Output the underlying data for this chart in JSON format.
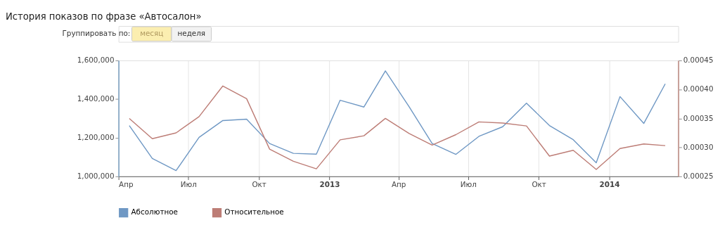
{
  "chart_data": {
    "type": "line",
    "title": "История показов по фразе «Автосалон»",
    "annotations": [
      "Группировать по:",
      "месяц",
      "неделя"
    ],
    "x": [
      "2012-04-15",
      "2012-05-15",
      "2012-06-15",
      "2012-07-15",
      "2012-08-15",
      "2012-09-15",
      "2012-10-15",
      "2012-11-15",
      "2012-12-15",
      "2013-01-15",
      "2013-02-15",
      "2013-03-15",
      "2013-04-15",
      "2013-05-15",
      "2013-06-15",
      "2013-07-15",
      "2013-08-15",
      "2013-09-15",
      "2013-10-15",
      "2013-11-15",
      "2013-12-15",
      "2014-01-15",
      "2014-02-15",
      "2014-03-15"
    ],
    "series": [
      {
        "name": "Абсолютное",
        "color": "#6f98c4",
        "values": [
          1263000,
          1093000,
          1030000,
          1202000,
          1289000,
          1296000,
          1170000,
          1119000,
          1115000,
          1394000,
          1359000,
          1546000,
          1360000,
          1170000,
          1114000,
          1207000,
          1257000,
          1379000,
          1263000,
          1190000,
          1070000,
          1413000,
          1274000,
          1479000
        ]
      },
      {
        "name": "Относительное",
        "color": "#bd7d76",
        "axis": "y2",
        "values": [
          0.00035,
          0.000315,
          0.000325,
          0.000353,
          0.000406,
          0.000384,
          0.000297,
          0.000276,
          0.000263,
          0.000313,
          0.00032,
          0.00035,
          0.000324,
          0.000304,
          0.000322,
          0.000344,
          0.000342,
          0.000337,
          0.000285,
          0.000295,
          0.000262,
          0.000298,
          0.000306,
          0.000303
        ]
      }
    ],
    "xlim": [
      "2012-04-01",
      "2014-04-01"
    ],
    "xticks": [
      {
        "value": "2012-04-01",
        "label": "Апр"
      },
      {
        "value": "2012-07-01",
        "label": "Июл"
      },
      {
        "value": "2012-10-01",
        "label": "Окт"
      },
      {
        "value": "2013-01-01",
        "label": "2013"
      },
      {
        "value": "2013-04-01",
        "label": "Апр"
      },
      {
        "value": "2013-07-01",
        "label": "Июл"
      },
      {
        "value": "2013-10-01",
        "label": "Окт"
      },
      {
        "value": "2014-01-01",
        "label": "2014"
      }
    ],
    "ylim": [
      1000000,
      1600000
    ],
    "yticks": [
      {
        "value": 1000000,
        "label": "1,000,000"
      },
      {
        "value": 1200000,
        "label": "1,200,000"
      },
      {
        "value": 1400000,
        "label": "1,400,000"
      },
      {
        "value": 1600000,
        "label": "1,600,000"
      }
    ],
    "y2lim": [
      0.00025,
      0.00045
    ],
    "y2ticks": [
      0.00025,
      {
        "value": 0.0003,
        "label": "0.00030"
      },
      0.00035,
      {
        "value": 0.0004,
        "label": "0.00040"
      },
      0.00045
    ],
    "grid": "x",
    "legend": "bottom left",
    "marker": "none",
    "line_style": "solid"
  }
}
